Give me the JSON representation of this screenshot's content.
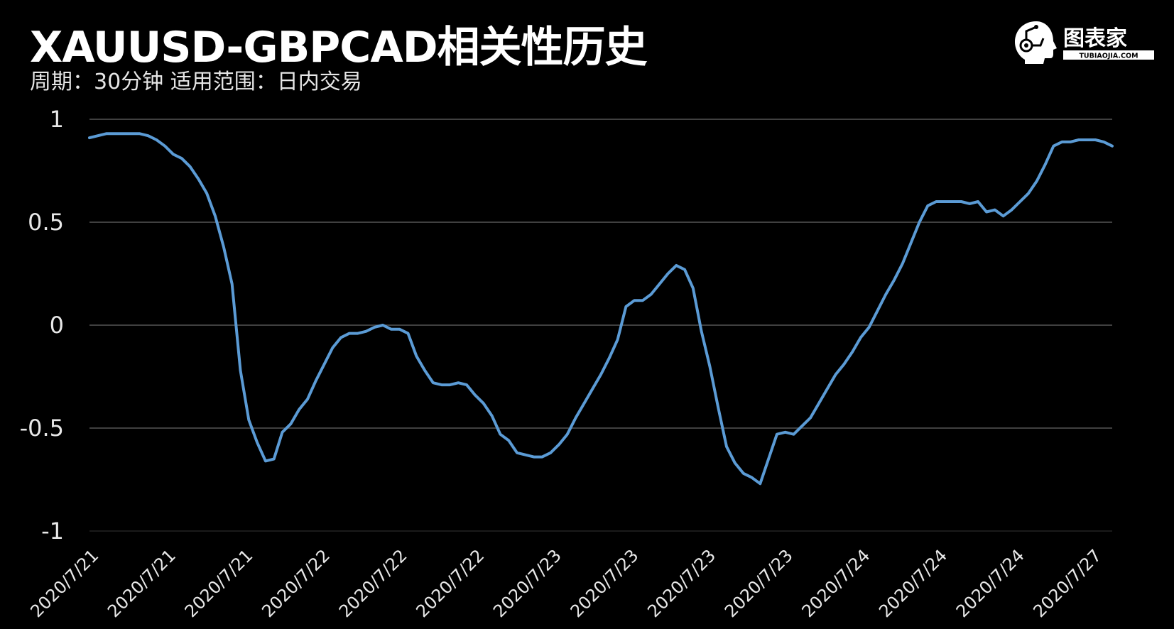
{
  "title": "XAUUSD-GBPCAD相关性历史",
  "subtitle": "周期：30分钟  适用范围：日内交易",
  "logo": {
    "text": "图表家",
    "subtext": "TUBIAOJIA.COM"
  },
  "colors": {
    "background": "#000000",
    "line": "#5b9bd5",
    "grid": "#555555",
    "text": "#e8e8e8"
  },
  "chart_data": {
    "type": "line",
    "title": "XAUUSD-GBPCAD相关性历史",
    "xlabel": "",
    "ylabel": "",
    "ylim": [
      -1,
      1
    ],
    "yticks": [
      1,
      0.5,
      0,
      -0.5,
      -1
    ],
    "ytick_labels": [
      "1",
      "0.5",
      "0",
      "-0.5",
      "-1"
    ],
    "xtick_labels": [
      "2020/7/21",
      "2020/7/21",
      "2020/7/21",
      "2020/7/22",
      "2020/7/22",
      "2020/7/22",
      "2020/7/23",
      "2020/7/23",
      "2020/7/23",
      "2020/7/23",
      "2020/7/24",
      "2020/7/24",
      "2020/7/24",
      "2020/7/27"
    ],
    "grid": true,
    "legend": "none",
    "series": [
      {
        "values": [
          0.91,
          0.92,
          0.93,
          0.93,
          0.93,
          0.93,
          0.93,
          0.92,
          0.9,
          0.87,
          0.83,
          0.81,
          0.77,
          0.71,
          0.64,
          0.53,
          0.38,
          0.2,
          -0.22,
          -0.46,
          -0.57,
          -0.66,
          -0.65,
          -0.52,
          -0.48,
          -0.41,
          -0.36,
          -0.27,
          -0.19,
          -0.11,
          -0.06,
          -0.04,
          -0.04,
          -0.03,
          -0.01,
          0.0,
          -0.02,
          -0.02,
          -0.04,
          -0.15,
          -0.22,
          -0.28,
          -0.29,
          -0.29,
          -0.28,
          -0.29,
          -0.34,
          -0.38,
          -0.44,
          -0.53,
          -0.56,
          -0.62,
          -0.63,
          -0.64,
          -0.64,
          -0.62,
          -0.58,
          -0.53,
          -0.45,
          -0.38,
          -0.31,
          -0.24,
          -0.16,
          -0.07,
          0.09,
          0.12,
          0.12,
          0.15,
          0.2,
          0.25,
          0.29,
          0.27,
          0.18,
          -0.03,
          -0.2,
          -0.4,
          -0.59,
          -0.67,
          -0.72,
          -0.74,
          -0.77,
          -0.65,
          -0.53,
          -0.52,
          -0.53,
          -0.49,
          -0.45,
          -0.38,
          -0.31,
          -0.24,
          -0.19,
          -0.13,
          -0.06,
          -0.01,
          0.07,
          0.15,
          0.22,
          0.3,
          0.4,
          0.5,
          0.58,
          0.6,
          0.6,
          0.6,
          0.6,
          0.59,
          0.6,
          0.55,
          0.56,
          0.53,
          0.56,
          0.6,
          0.64,
          0.7,
          0.78,
          0.87,
          0.89,
          0.89,
          0.9,
          0.9,
          0.9,
          0.89,
          0.87
        ]
      }
    ]
  }
}
